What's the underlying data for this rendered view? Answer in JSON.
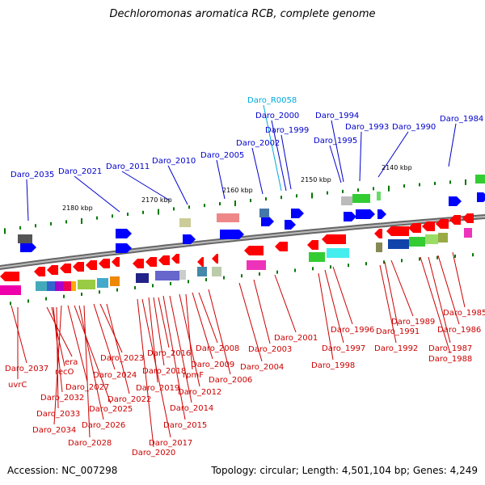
{
  "title": "Dechloromonas aromatica RCB, complete genome",
  "accession_label": "Accession: NC_007298",
  "topology_label": "Topology: circular; Length: 4,501,104 bp; Genes: 4,249",
  "scale_labels": [
    "2180 kbp",
    "2170 kbp",
    "2160 kbp",
    "2150 kbp",
    "2140 kbp"
  ],
  "colors": {
    "forward_label": "#0000cc",
    "reverse_label": "#cc0000",
    "rna_label": "#00aadd",
    "forward_gene": "#0000ff",
    "reverse_gene": "#ff0000",
    "backbone": "#888888",
    "tick": "#007700"
  },
  "forward_labels": [
    "Daro_2035",
    "Daro_2021",
    "Daro_2011",
    "Daro_2010",
    "Daro_2005",
    "Daro_2002",
    "Daro_R0058",
    "Daro_2000",
    "Daro_1999",
    "Daro_1995",
    "Daro_1994",
    "Daro_1993",
    "Daro_1990",
    "Daro_1984"
  ],
  "rna_labels": [
    "Daro_R0058"
  ],
  "reverse_labels": [
    "Daro_2037",
    "uvrC",
    "era",
    "recO",
    "Daro_2032",
    "Daro_2033",
    "Daro_2034",
    "Daro_2027",
    "Daro_2025",
    "Daro_2026",
    "Daro_2028",
    "Daro_2024",
    "Daro_2023",
    "Daro_2022",
    "Daro_2020",
    "Daro_2017",
    "Daro_2019",
    "Daro_2018",
    "Daro_2016",
    "Daro_2015",
    "Daro_2014",
    "Daro_2012",
    "rpmF",
    "Daro_2009",
    "Daro_2008",
    "Daro_2006",
    "Daro_2004",
    "Daro_2003",
    "Daro_2001",
    "Daro_1998",
    "Daro_1997",
    "Daro_1996",
    "Daro_1992",
    "Daro_1991",
    "Daro_1989",
    "Daro_1988",
    "Daro_1987",
    "Daro_1986",
    "Daro_1985"
  ]
}
